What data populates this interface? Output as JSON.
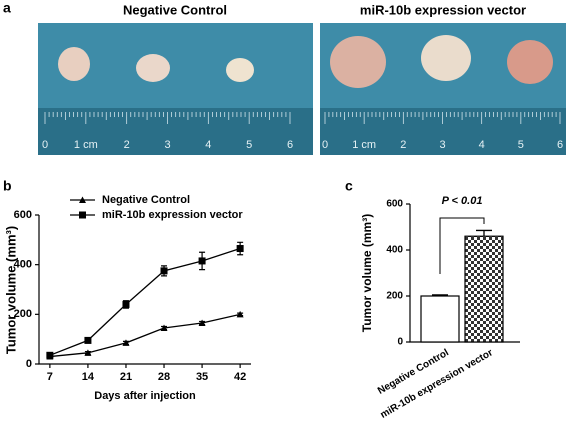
{
  "panel_labels": [
    "a",
    "b",
    "c"
  ],
  "photos": [
    {
      "title": "Negative Control",
      "ruler_labels": [
        "0",
        "1 cm",
        "2",
        "3",
        "4",
        "5",
        "6"
      ]
    },
    {
      "title": "miR-10b expression vector",
      "ruler_labels": [
        "0",
        "1 cm",
        "2",
        "3",
        "4",
        "5",
        "6"
      ]
    }
  ],
  "chart_data": [
    {
      "type": "line",
      "x_label": "Days after injection",
      "y_label": "Tumor volume (mm³)",
      "x": [
        7,
        14,
        21,
        28,
        35,
        42
      ],
      "xlim": [
        5,
        44
      ],
      "xticks": [
        7,
        14,
        21,
        28,
        35,
        42
      ],
      "ylim": [
        0,
        600
      ],
      "yticks": [
        0,
        200,
        400,
        600
      ],
      "legend": "top-left",
      "series": [
        {
          "name": "Negative Control",
          "color": "#000000",
          "marker": "triangle",
          "values": [
            30,
            45,
            85,
            145,
            165,
            200
          ],
          "errors": [
            5,
            5,
            6,
            6,
            6,
            5
          ]
        },
        {
          "name": "miR-10b expression vector",
          "color": "#000000",
          "marker": "square",
          "values": [
            35,
            95,
            240,
            375,
            415,
            465
          ],
          "errors": [
            10,
            8,
            15,
            20,
            35,
            25
          ]
        }
      ]
    },
    {
      "type": "bar",
      "y_label": "Tumor volume (mm³)",
      "annotation": "P < 0.01",
      "categories": [
        "Negative Control",
        "miR-10b expression vector"
      ],
      "values": [
        200,
        460
      ],
      "errors": [
        5,
        25
      ],
      "colors": [
        "#ffffff",
        "#ffffff"
      ],
      "hatches": [
        "none",
        "checker"
      ],
      "ylim": [
        0,
        600
      ],
      "yticks": [
        0,
        200,
        400,
        600
      ]
    }
  ]
}
